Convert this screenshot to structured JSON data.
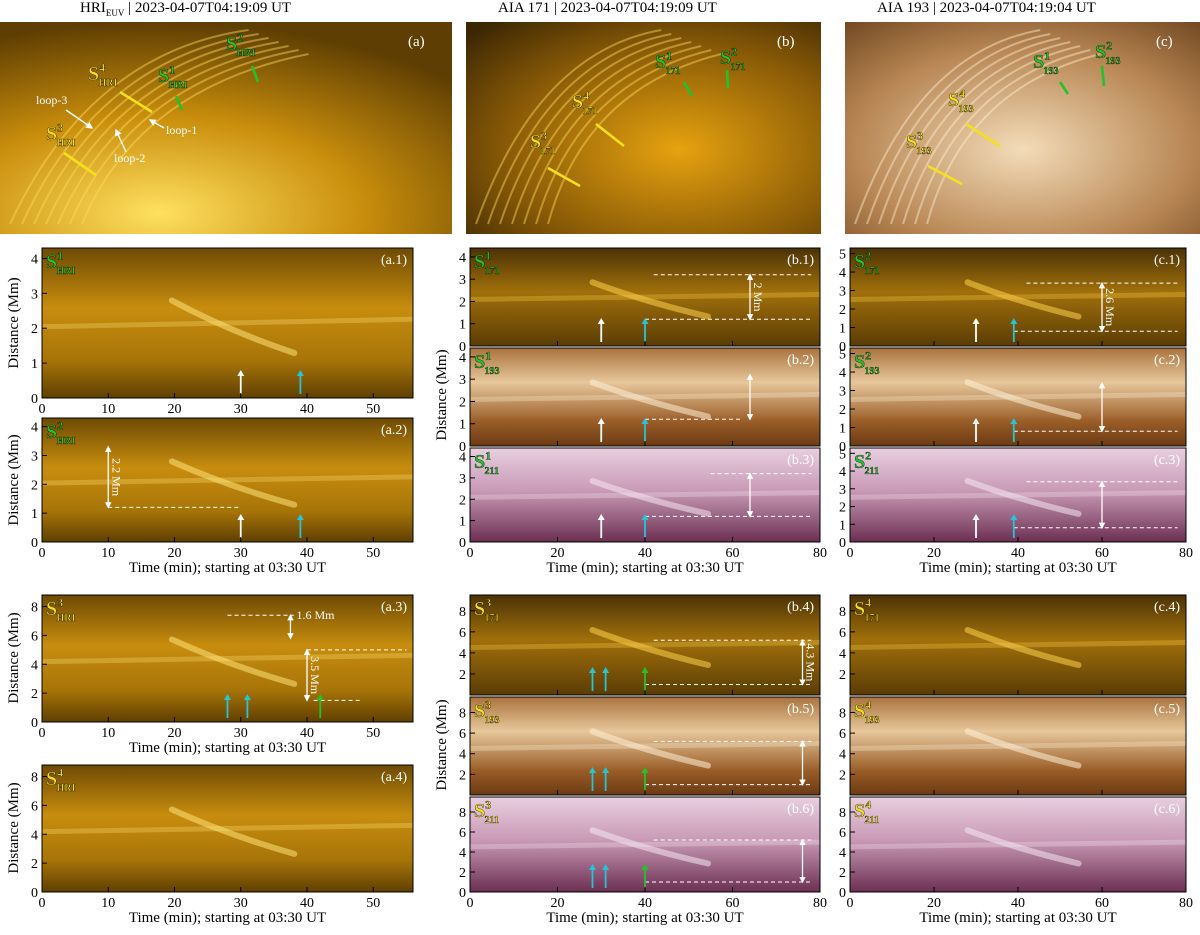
{
  "headers": {
    "hri_instr": "HRI",
    "hri_sub": "EUV",
    "hri_time": " | 2023-04-07T04:19:09 UT",
    "aia171": "AIA 171 | 2023-04-07T04:19:09 UT",
    "aia193": "AIA 193 | 2023-04-07T04:19:04 UT"
  },
  "context_panels": {
    "a": {
      "label": "(a)",
      "slits": [
        {
          "base": "S",
          "sup": "1",
          "sub": "HRI",
          "color": "green"
        },
        {
          "base": "S",
          "sup": "2",
          "sub": "HRI",
          "color": "green"
        },
        {
          "base": "S",
          "sup": "3",
          "sub": "HRI",
          "color": "yellow"
        },
        {
          "base": "S",
          "sup": "4",
          "sub": "HRI",
          "color": "yellow"
        }
      ],
      "loops": [
        "loop-1",
        "loop-2",
        "loop-3"
      ]
    },
    "b": {
      "label": "(b)",
      "slits": [
        {
          "base": "S",
          "sup": "1",
          "sub": "171",
          "color": "green"
        },
        {
          "base": "S",
          "sup": "2",
          "sub": "171",
          "color": "green"
        },
        {
          "base": "S",
          "sup": "3",
          "sub": "171",
          "color": "yellow"
        },
        {
          "base": "S",
          "sup": "4",
          "sub": "171",
          "color": "yellow"
        }
      ]
    },
    "c": {
      "label": "(c)",
      "slits": [
        {
          "base": "S",
          "sup": "1",
          "sub": "193",
          "color": "green"
        },
        {
          "base": "S",
          "sup": "2",
          "sub": "193",
          "color": "green"
        },
        {
          "base": "S",
          "sup": "3",
          "sub": "193",
          "color": "yellow"
        },
        {
          "base": "S",
          "sup": "4",
          "sub": "193",
          "color": "yellow"
        }
      ]
    }
  },
  "axis_labels": {
    "ylabel": "Distance (Mm)",
    "xlabel": "Time (min); starting at 03:30 UT"
  },
  "chart_data": [
    {
      "id": "a.1",
      "label": "(a.1)",
      "slit": {
        "sup": "1",
        "sub": "HRI",
        "color": "green"
      },
      "type": "heatmap",
      "xlim": [
        0,
        56
      ],
      "xticks": [
        0,
        10,
        20,
        30,
        40,
        50
      ],
      "ylim": [
        0,
        4.3
      ],
      "yticks": [
        0,
        1,
        2,
        3,
        4
      ],
      "cmap": "hri",
      "arrows": [
        {
          "t": 30,
          "color": "white"
        },
        {
          "t": 39,
          "color": "cyan"
        }
      ],
      "dashed": [],
      "annot": null
    },
    {
      "id": "a.2",
      "label": "(a.2)",
      "slit": {
        "sup": "2",
        "sub": "HRI",
        "color": "green"
      },
      "type": "heatmap",
      "xlim": [
        0,
        56
      ],
      "xticks": [
        0,
        10,
        20,
        30,
        40,
        50
      ],
      "ylim": [
        0,
        4.3
      ],
      "yticks": [
        0,
        1,
        2,
        3,
        4
      ],
      "cmap": "hri",
      "arrows": [
        {
          "t": 30,
          "color": "white"
        },
        {
          "t": 39,
          "color": "cyan"
        }
      ],
      "dashed": [
        {
          "y": 1.2,
          "t0": 10,
          "t1": 30
        }
      ],
      "annot": {
        "text": "2.2 Mm",
        "t": 10,
        "y0": 1.2,
        "y1": 3.3
      }
    },
    {
      "id": "a.3",
      "label": "(a.3)",
      "slit": {
        "sup": "3",
        "sub": "HRI",
        "color": "yellow"
      },
      "type": "heatmap",
      "xlim": [
        0,
        56
      ],
      "xticks": [
        0,
        10,
        20,
        30,
        40,
        50
      ],
      "ylim": [
        0,
        8.8
      ],
      "yticks": [
        0,
        2,
        4,
        6,
        8
      ],
      "cmap": "hri",
      "arrows": [
        {
          "t": 28,
          "color": "cyan"
        },
        {
          "t": 31,
          "color": "cyan"
        },
        {
          "t": 42,
          "color": "green"
        }
      ],
      "dashed": [
        {
          "y": 7.4,
          "t0": 28,
          "t1": 38
        },
        {
          "y": 5.0,
          "t0": 40,
          "t1": 55
        },
        {
          "y": 1.5,
          "t0": 41,
          "t1": 48
        }
      ],
      "annot": {
        "text": "1.6 Mm",
        "t": 37.5,
        "y0": 5.8,
        "y1": 7.4
      },
      "annot2": {
        "text": "3.5 Mm",
        "t": 40,
        "y0": 1.5,
        "y1": 5.0
      }
    },
    {
      "id": "a.4",
      "label": "(a.4)",
      "slit": {
        "sup": "4",
        "sub": "HRI",
        "color": "yellow"
      },
      "type": "heatmap",
      "xlim": [
        0,
        56
      ],
      "xticks": [
        0,
        10,
        20,
        30,
        40,
        50
      ],
      "ylim": [
        0,
        8.8
      ],
      "yticks": [
        0,
        2,
        4,
        6,
        8
      ],
      "cmap": "hri",
      "arrows": [],
      "dashed": [],
      "annot": null
    },
    {
      "id": "b.1",
      "label": "(b.1)",
      "slit": {
        "sup": "1",
        "sub": "171",
        "color": "green"
      },
      "type": "heatmap",
      "xlim": [
        0,
        80
      ],
      "xticks": [
        0,
        20,
        40,
        60,
        80
      ],
      "ylim": [
        0,
        4.4
      ],
      "yticks": [
        0,
        1,
        2,
        3,
        4
      ],
      "cmap": "a171",
      "arrows": [
        {
          "t": 30,
          "color": "white"
        },
        {
          "t": 40,
          "color": "cyan"
        }
      ],
      "dashed": [
        {
          "y": 3.2,
          "t0": 42,
          "t1": 78
        },
        {
          "y": 1.2,
          "t0": 40,
          "t1": 78
        }
      ],
      "annot": {
        "text": "2 Mm",
        "t": 64,
        "y0": 1.2,
        "y1": 3.2
      }
    },
    {
      "id": "b.2",
      "label": "(b.2)",
      "slit": {
        "sup": "1",
        "sub": "193",
        "color": "green"
      },
      "type": "heatmap",
      "xlim": [
        0,
        80
      ],
      "xticks": [
        0,
        20,
        40,
        60,
        80
      ],
      "ylim": [
        0,
        4.4
      ],
      "yticks": [
        0,
        1,
        2,
        3,
        4
      ],
      "cmap": "a193",
      "arrows": [
        {
          "t": 30,
          "color": "white"
        },
        {
          "t": 40,
          "color": "cyan"
        }
      ],
      "dashed": [
        {
          "y": 1.2,
          "t0": 40,
          "t1": 62
        }
      ],
      "annot": {
        "text": "",
        "t": 64,
        "y0": 1.2,
        "y1": 3.2
      }
    },
    {
      "id": "b.3",
      "label": "(b.3)",
      "slit": {
        "sup": "1",
        "sub": "211",
        "color": "green"
      },
      "type": "heatmap",
      "xlim": [
        0,
        80
      ],
      "xticks": [
        0,
        20,
        40,
        60,
        80
      ],
      "ylim": [
        0,
        4.4
      ],
      "yticks": [
        0,
        1,
        2,
        3,
        4
      ],
      "cmap": "a211",
      "arrows": [
        {
          "t": 30,
          "color": "white"
        },
        {
          "t": 40,
          "color": "cyan"
        }
      ],
      "dashed": [
        {
          "y": 3.2,
          "t0": 55,
          "t1": 78
        },
        {
          "y": 1.2,
          "t0": 40,
          "t1": 78
        }
      ],
      "annot": {
        "text": "",
        "t": 64,
        "y0": 1.2,
        "y1": 3.2
      }
    },
    {
      "id": "c.1",
      "label": "(c.1)",
      "slit": {
        "sup": "2",
        "sub": "171",
        "color": "green"
      },
      "type": "heatmap",
      "xlim": [
        0,
        80
      ],
      "xticks": [
        0,
        20,
        40,
        60,
        80
      ],
      "ylim": [
        0,
        5.3
      ],
      "yticks": [
        0,
        1,
        2,
        3,
        4,
        5
      ],
      "cmap": "a171",
      "arrows": [
        {
          "t": 30,
          "color": "white"
        },
        {
          "t": 39,
          "color": "cyan"
        }
      ],
      "dashed": [
        {
          "y": 3.4,
          "t0": 42,
          "t1": 78
        },
        {
          "y": 0.8,
          "t0": 39,
          "t1": 78
        }
      ],
      "annot": {
        "text": "2.6 Mm",
        "t": 60,
        "y0": 0.8,
        "y1": 3.4
      }
    },
    {
      "id": "c.2",
      "label": "(c.2)",
      "slit": {
        "sup": "2",
        "sub": "193",
        "color": "green"
      },
      "type": "heatmap",
      "xlim": [
        0,
        80
      ],
      "xticks": [
        0,
        20,
        40,
        60,
        80
      ],
      "ylim": [
        0,
        5.3
      ],
      "yticks": [
        0,
        1,
        2,
        3,
        4,
        5
      ],
      "cmap": "a193",
      "arrows": [
        {
          "t": 30,
          "color": "white"
        },
        {
          "t": 39,
          "color": "cyan"
        }
      ],
      "dashed": [
        {
          "y": 0.8,
          "t0": 39,
          "t1": 78
        }
      ],
      "annot": {
        "text": "",
        "t": 60,
        "y0": 0.8,
        "y1": 3.4
      }
    },
    {
      "id": "c.3",
      "label": "(c.3)",
      "slit": {
        "sup": "2",
        "sub": "211",
        "color": "green"
      },
      "type": "heatmap",
      "xlim": [
        0,
        80
      ],
      "xticks": [
        0,
        20,
        40,
        60,
        80
      ],
      "ylim": [
        0,
        5.3
      ],
      "yticks": [
        0,
        1,
        2,
        3,
        4,
        5
      ],
      "cmap": "a211",
      "arrows": [
        {
          "t": 30,
          "color": "white"
        },
        {
          "t": 39,
          "color": "cyan"
        }
      ],
      "dashed": [
        {
          "y": 3.4,
          "t0": 42,
          "t1": 78
        },
        {
          "y": 0.8,
          "t0": 39,
          "t1": 78
        }
      ],
      "annot": {
        "text": "",
        "t": 60,
        "y0": 0.8,
        "y1": 3.4
      }
    },
    {
      "id": "b.4",
      "label": "(b.4)",
      "slit": {
        "sup": "3",
        "sub": "171",
        "color": "yellow"
      },
      "type": "heatmap",
      "xlim": [
        0,
        80
      ],
      "xticks": [
        0,
        20,
        40,
        60,
        80
      ],
      "ylim": [
        0,
        9.5
      ],
      "yticks": [
        2,
        4,
        6,
        8
      ],
      "cmap": "a171",
      "arrows": [
        {
          "t": 28,
          "color": "cyan"
        },
        {
          "t": 31,
          "color": "cyan"
        },
        {
          "t": 40,
          "color": "green"
        }
      ],
      "dashed": [
        {
          "y": 5.2,
          "t0": 42,
          "t1": 78
        },
        {
          "y": 1.0,
          "t0": 40,
          "t1": 78
        }
      ],
      "annot": {
        "text": "4.3 Mm",
        "t": 76,
        "y0": 1.0,
        "y1": 5.2
      }
    },
    {
      "id": "b.5",
      "label": "(b.5)",
      "slit": {
        "sup": "3",
        "sub": "193",
        "color": "yellow"
      },
      "type": "heatmap",
      "xlim": [
        0,
        80
      ],
      "xticks": [
        0,
        20,
        40,
        60,
        80
      ],
      "ylim": [
        0,
        9.5
      ],
      "yticks": [
        2,
        4,
        6,
        8
      ],
      "cmap": "a193",
      "arrows": [
        {
          "t": 28,
          "color": "cyan"
        },
        {
          "t": 31,
          "color": "cyan"
        },
        {
          "t": 40,
          "color": "green"
        }
      ],
      "dashed": [
        {
          "y": 5.2,
          "t0": 42,
          "t1": 78
        },
        {
          "y": 1.0,
          "t0": 40,
          "t1": 78
        }
      ],
      "annot": {
        "text": "",
        "t": 76,
        "y0": 1.0,
        "y1": 5.2
      }
    },
    {
      "id": "b.6",
      "label": "(b.6)",
      "slit": {
        "sup": "3",
        "sub": "211",
        "color": "yellow"
      },
      "type": "heatmap",
      "xlim": [
        0,
        80
      ],
      "xticks": [
        0,
        20,
        40,
        60,
        80
      ],
      "ylim": [
        0,
        9.5
      ],
      "yticks": [
        0,
        2,
        4,
        6,
        8
      ],
      "cmap": "a211",
      "arrows": [
        {
          "t": 28,
          "color": "cyan"
        },
        {
          "t": 31,
          "color": "cyan"
        },
        {
          "t": 40,
          "color": "green"
        }
      ],
      "dashed": [
        {
          "y": 5.2,
          "t0": 42,
          "t1": 78
        },
        {
          "y": 1.0,
          "t0": 40,
          "t1": 78
        }
      ],
      "annot": {
        "text": "",
        "t": 76,
        "y0": 1.0,
        "y1": 5.2
      }
    },
    {
      "id": "c.4",
      "label": "(c.4)",
      "slit": {
        "sup": "4",
        "sub": "171",
        "color": "yellow"
      },
      "type": "heatmap",
      "xlim": [
        0,
        80
      ],
      "xticks": [
        0,
        20,
        40,
        60,
        80
      ],
      "ylim": [
        0,
        9.5
      ],
      "yticks": [
        2,
        4,
        6,
        8
      ],
      "cmap": "a171",
      "arrows": [],
      "dashed": [],
      "annot": null
    },
    {
      "id": "c.5",
      "label": "(c.5)",
      "slit": {
        "sup": "4",
        "sub": "193",
        "color": "yellow"
      },
      "type": "heatmap",
      "xlim": [
        0,
        80
      ],
      "xticks": [
        0,
        20,
        40,
        60,
        80
      ],
      "ylim": [
        0,
        9.5
      ],
      "yticks": [
        2,
        4,
        6,
        8
      ],
      "cmap": "a193",
      "arrows": [],
      "dashed": [],
      "annot": null
    },
    {
      "id": "c.6",
      "label": "(c.6)",
      "slit": {
        "sup": "4",
        "sub": "211",
        "color": "yellow"
      },
      "type": "heatmap",
      "xlim": [
        0,
        80
      ],
      "xticks": [
        0,
        20,
        40,
        60,
        80
      ],
      "ylim": [
        0,
        9.5
      ],
      "yticks": [
        0,
        2,
        4,
        6,
        8
      ],
      "cmap": "a211",
      "arrows": [],
      "dashed": [],
      "annot": null
    }
  ],
  "colors": {
    "green": "#22c22a",
    "yellow": "#f5e11a",
    "cyan": "#27c4d6",
    "white": "#ffffff"
  }
}
